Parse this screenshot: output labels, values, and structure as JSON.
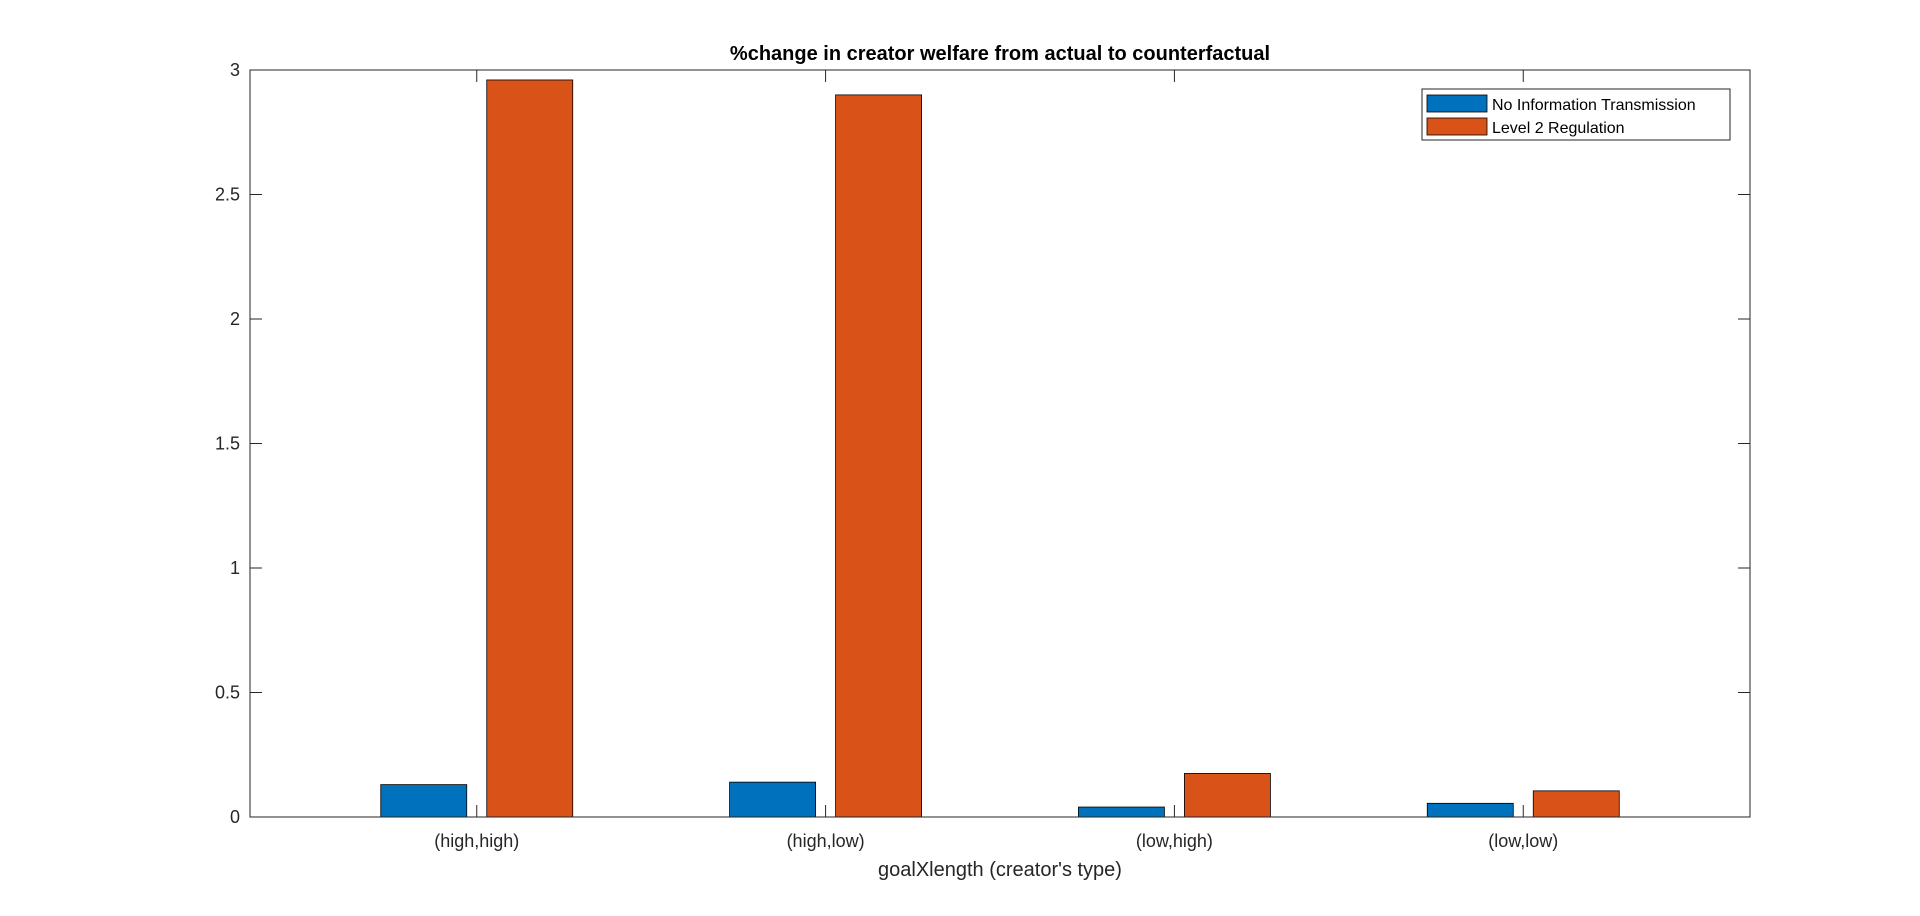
{
  "chart_data": {
    "type": "bar",
    "title": "%change in creator welfare from actual to counterfactual",
    "xlabel": "goalXlength (creator's type)",
    "ylabel": "",
    "categories": [
      "(high,high)",
      "(high,low)",
      "(low,high)",
      "(low,low)"
    ],
    "series": [
      {
        "name": "No Information Transmission",
        "color": "#0072BD",
        "values": [
          0.13,
          0.14,
          0.04,
          0.055
        ]
      },
      {
        "name": "Level 2 Regulation",
        "color": "#D95319",
        "values": [
          2.96,
          2.9,
          0.175,
          0.105
        ]
      }
    ],
    "ylim": [
      0,
      3
    ],
    "yticks": [
      0,
      0.5,
      1,
      1.5,
      2,
      2.5,
      3
    ],
    "ytick_labels": [
      "0",
      "0.5",
      "1",
      "1.5",
      "2",
      "2.5",
      "3"
    ],
    "grid": false,
    "legend_position": "top-right"
  }
}
